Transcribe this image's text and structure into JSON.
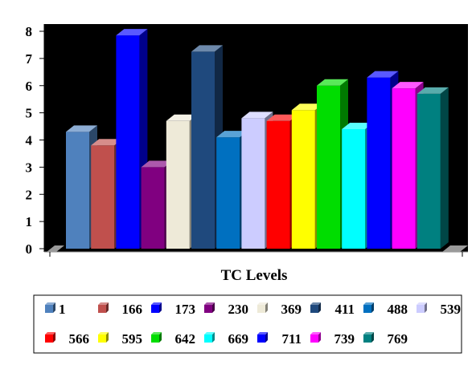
{
  "chart_data": {
    "type": "bar",
    "style": "3d",
    "xlabel": "TC Levels",
    "ylabel": "",
    "title": "",
    "ylim": [
      0,
      8
    ],
    "yticks": [
      "0",
      "1",
      "2",
      "3",
      "4",
      "5",
      "6",
      "7",
      "8"
    ],
    "grid": false,
    "plot_background": "#000000",
    "legend_position": "bottom",
    "series": [
      {
        "name": "1",
        "value": 4.3,
        "color": "#4F81BD"
      },
      {
        "name": "166",
        "value": 3.8,
        "color": "#C0504D"
      },
      {
        "name": "173",
        "value": 7.85,
        "color": "#0000FF"
      },
      {
        "name": "230",
        "value": 3.0,
        "color": "#800080"
      },
      {
        "name": "369",
        "value": 4.7,
        "color": "#EEEAD8"
      },
      {
        "name": "411",
        "value": 7.25,
        "color": "#1F497D"
      },
      {
        "name": "488",
        "value": 4.1,
        "color": "#0070C0"
      },
      {
        "name": "539",
        "value": 4.8,
        "color": "#CCCCFF"
      },
      {
        "name": "566",
        "value": 4.7,
        "color": "#FF0000"
      },
      {
        "name": "595",
        "value": 5.1,
        "color": "#FFFF00"
      },
      {
        "name": "642",
        "value": 6.0,
        "color": "#00DD00"
      },
      {
        "name": "669",
        "value": 4.4,
        "color": "#00FFFF"
      },
      {
        "name": "711",
        "value": 6.3,
        "color": "#0000FF"
      },
      {
        "name": "739",
        "value": 5.9,
        "color": "#FF00FF"
      },
      {
        "name": "769",
        "value": 5.7,
        "color": "#008080"
      }
    ]
  }
}
